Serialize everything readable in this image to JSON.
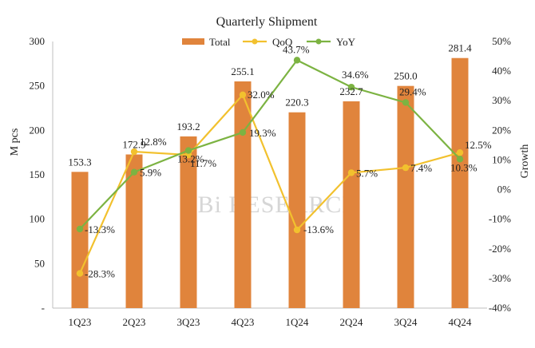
{
  "chart_data": {
    "type": "bar",
    "title": "Quarterly Shipment",
    "xlabel": "",
    "ylabel": "M pcs",
    "y2label": "Growth",
    "categories": [
      "1Q23",
      "2Q23",
      "3Q23",
      "4Q23",
      "1Q24",
      "2Q24",
      "3Q24",
      "4Q24"
    ],
    "ylim": [
      0,
      300
    ],
    "y_ticks": [
      "-",
      "50",
      "100",
      "150",
      "200",
      "250",
      "300"
    ],
    "y2lim": [
      -40,
      50
    ],
    "y2_ticks": [
      "-40%",
      "-30%",
      "-20%",
      "-10%",
      "0%",
      "10%",
      "20%",
      "30%",
      "40%",
      "50%"
    ],
    "legend_position": "top",
    "grid": false,
    "watermark": "UBi RESEARCH",
    "series": [
      {
        "name": "Total",
        "type": "bar",
        "axis": "left",
        "color": "#E0843C",
        "values": [
          153.3,
          172.9,
          193.2,
          255.1,
          220.3,
          232.7,
          250.0,
          281.4
        ],
        "labels": [
          "153.3",
          "172.9",
          "193.2",
          "255.1",
          "220.3",
          "232.7",
          "250.0",
          "281.4"
        ]
      },
      {
        "name": "QoQ",
        "type": "line",
        "axis": "right",
        "color": "#F2C12E",
        "values": [
          -28.3,
          12.8,
          11.7,
          32.0,
          -13.6,
          5.7,
          7.4,
          12.5
        ],
        "labels": [
          "-28.3%",
          "12.8%",
          "11.7%",
          "32.0%",
          "-13.6%",
          "5.7%",
          "7.4%",
          "12.5%"
        ]
      },
      {
        "name": "YoY",
        "type": "line",
        "axis": "right",
        "color": "#7CB342",
        "values": [
          -13.3,
          5.9,
          13.2,
          19.3,
          43.7,
          34.6,
          29.4,
          10.3
        ],
        "labels": [
          "-13.3%",
          "5.9%",
          "13.2%",
          "19.3%",
          "43.7%",
          "34.6%",
          "29.4%",
          "10.3%"
        ]
      }
    ]
  }
}
